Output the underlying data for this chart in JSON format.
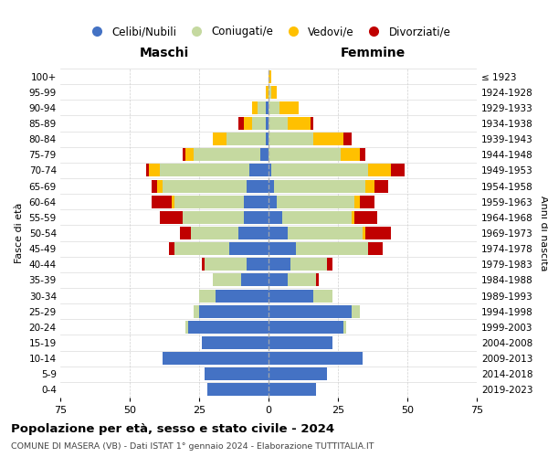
{
  "age_groups": [
    "0-4",
    "5-9",
    "10-14",
    "15-19",
    "20-24",
    "25-29",
    "30-34",
    "35-39",
    "40-44",
    "45-49",
    "50-54",
    "55-59",
    "60-64",
    "65-69",
    "70-74",
    "75-79",
    "80-84",
    "85-89",
    "90-94",
    "95-99",
    "100+"
  ],
  "birth_years": [
    "2019-2023",
    "2014-2018",
    "2009-2013",
    "2004-2008",
    "1999-2003",
    "1994-1998",
    "1989-1993",
    "1984-1988",
    "1979-1983",
    "1974-1978",
    "1969-1973",
    "1964-1968",
    "1959-1963",
    "1954-1958",
    "1949-1953",
    "1944-1948",
    "1939-1943",
    "1934-1938",
    "1929-1933",
    "1924-1928",
    "≤ 1923"
  ],
  "colors": {
    "celibi": "#4472c4",
    "coniugati": "#c5d9a0",
    "vedovi": "#ffc000",
    "divorziati": "#c00000"
  },
  "maschi": {
    "celibi": [
      22,
      23,
      38,
      24,
      29,
      25,
      19,
      10,
      8,
      14,
      11,
      9,
      9,
      8,
      7,
      3,
      1,
      1,
      1,
      0,
      0
    ],
    "coniugati": [
      0,
      0,
      0,
      0,
      1,
      2,
      6,
      10,
      15,
      20,
      17,
      22,
      25,
      30,
      32,
      24,
      14,
      5,
      3,
      0,
      0
    ],
    "vedovi": [
      0,
      0,
      0,
      0,
      0,
      0,
      0,
      0,
      0,
      0,
      0,
      0,
      1,
      2,
      4,
      3,
      5,
      3,
      2,
      1,
      0
    ],
    "divorziati": [
      0,
      0,
      0,
      0,
      0,
      0,
      0,
      0,
      1,
      2,
      4,
      8,
      7,
      2,
      1,
      1,
      0,
      2,
      0,
      0,
      0
    ]
  },
  "femmine": {
    "celibi": [
      17,
      21,
      34,
      23,
      27,
      30,
      16,
      7,
      8,
      10,
      7,
      5,
      3,
      2,
      1,
      0,
      0,
      0,
      0,
      0,
      0
    ],
    "coniugati": [
      0,
      0,
      0,
      0,
      1,
      3,
      7,
      10,
      13,
      26,
      27,
      25,
      28,
      33,
      35,
      26,
      16,
      7,
      4,
      1,
      0
    ],
    "vedovi": [
      0,
      0,
      0,
      0,
      0,
      0,
      0,
      0,
      0,
      0,
      1,
      1,
      2,
      3,
      8,
      7,
      11,
      8,
      7,
      2,
      1
    ],
    "divorziati": [
      0,
      0,
      0,
      0,
      0,
      0,
      0,
      1,
      2,
      5,
      9,
      8,
      5,
      5,
      5,
      2,
      3,
      1,
      0,
      0,
      0
    ]
  },
  "xlim": 75,
  "title": "Popolazione per età, sesso e stato civile - 2024",
  "subtitle": "COMUNE DI MASERA (VB) - Dati ISTAT 1° gennaio 2024 - Elaborazione TUTTITALIA.IT",
  "xlabel_left": "Maschi",
  "xlabel_right": "Femmine",
  "ylabel_left": "Fasce di età",
  "ylabel_right": "Anni di nascita",
  "legend_labels": [
    "Celibi/Nubili",
    "Coniugati/e",
    "Vedovi/e",
    "Divorziati/e"
  ],
  "background_color": "#ffffff",
  "grid_color": "#cccccc"
}
